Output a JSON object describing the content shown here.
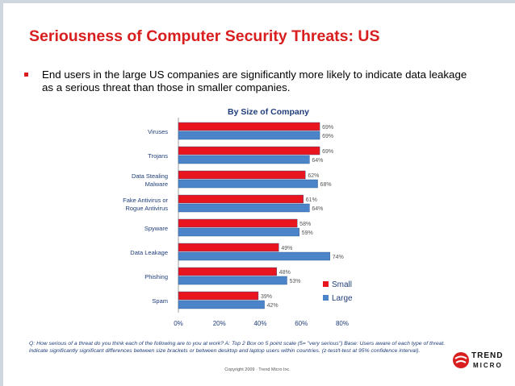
{
  "slide": {
    "title": "Seriousness of Computer Security Threats: US",
    "bullet": "End users in the large US companies are significantly more likely to indicate data leakage as a serious threat than those in smaller companies.",
    "footnote_line1": "Q: How serious of a threat do you think each of the following are to you at work?  A: Top 2 Box on 5 point scale (5= \"very serious\")   Base: Users aware of each type of threat.",
    "footnote_line2": "indicate significantly significant differences between size brackets or between desktop and laptop users within countries.  (z-test/t-test at 95% confidence interval).",
    "copyright": "Copyright 2009 · Trend Micro Inc.",
    "logo_line1": "TREND",
    "logo_line2": "MICRO"
  },
  "colors": {
    "title": "#d81e1e",
    "small": "#e8141e",
    "large": "#4b84c8",
    "text_dark": "#1f3d7a"
  },
  "chart_data": {
    "type": "bar",
    "orientation": "horizontal",
    "title": "By Size of Company",
    "categories": [
      "Viruses",
      "Trojans",
      "Data Stealing Malware",
      "Fake Antivirus or Rogue Antivirus",
      "Spyware",
      "Data Leakage",
      "Phishing",
      "Spam"
    ],
    "series": [
      {
        "name": "Small",
        "values": [
          69,
          69,
          62,
          61,
          58,
          49,
          48,
          39
        ]
      },
      {
        "name": "Large",
        "values": [
          69,
          64,
          68,
          64,
          59,
          74,
          53,
          42
        ]
      }
    ],
    "value_labels_small": [
      "69%",
      "69%",
      "62%",
      "61%",
      "58%",
      "49%",
      "48%",
      "39%"
    ],
    "value_labels_large": [
      "69%",
      "64%",
      "68%",
      "64%",
      "59%",
      "74%",
      "53%",
      "42%"
    ],
    "xlim": [
      0,
      80
    ],
    "x_ticks": [
      "0%",
      "20%",
      "40%",
      "60%",
      "80%"
    ],
    "legend": "bottom-right",
    "grid": false
  }
}
